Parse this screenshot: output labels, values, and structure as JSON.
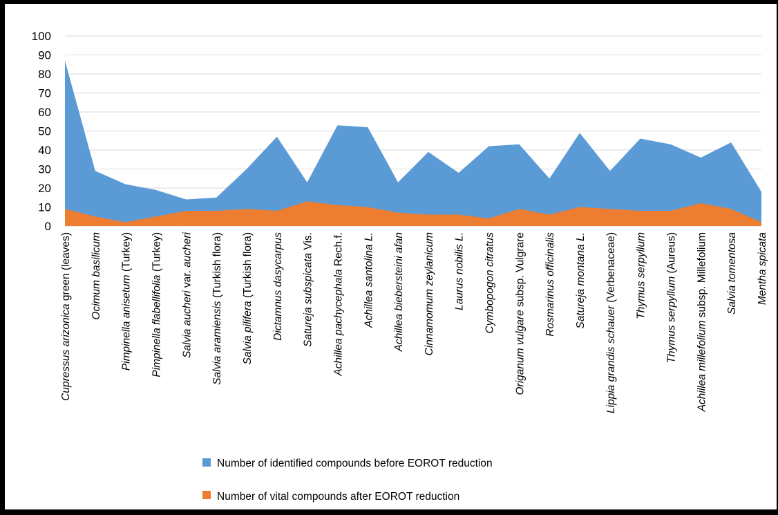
{
  "chart_data": {
    "type": "area",
    "categories": [
      {
        "parts": [
          {
            "t": "Cupressus arizonica",
            "i": true
          },
          {
            "t": " green (leaves)",
            "i": false
          }
        ]
      },
      {
        "parts": [
          {
            "t": "Ocimum basilicum",
            "i": true
          }
        ]
      },
      {
        "parts": [
          {
            "t": "Pimpinella anisetum",
            "i": true
          },
          {
            "t": " (Turkey)",
            "i": false
          }
        ]
      },
      {
        "parts": [
          {
            "t": "Pimpinella flabellifolia",
            "i": true
          },
          {
            "t": " (Turkey)",
            "i": false
          }
        ]
      },
      {
        "parts": [
          {
            "t": "Salvia aucheri",
            "i": true
          },
          {
            "t": " var. ",
            "i": false
          },
          {
            "t": "aucheri",
            "i": true
          }
        ]
      },
      {
        "parts": [
          {
            "t": "Salvia aramiensis",
            "i": true
          },
          {
            "t": " (Turkish flora)",
            "i": false
          }
        ]
      },
      {
        "parts": [
          {
            "t": "Salvia pilifera",
            "i": true
          },
          {
            "t": " (Turkish flora)",
            "i": false
          }
        ]
      },
      {
        "parts": [
          {
            "t": "Dictamnus dasycarpus",
            "i": true
          }
        ]
      },
      {
        "parts": [
          {
            "t": "Satureja subspicata",
            "i": true
          },
          {
            "t": " Vis.",
            "i": false
          }
        ]
      },
      {
        "parts": [
          {
            "t": "Achillea pachycephala",
            "i": true
          },
          {
            "t": " Rech.f.",
            "i": false
          }
        ]
      },
      {
        "parts": [
          {
            "t": "Achillea santolina L.",
            "i": true
          }
        ]
      },
      {
        "parts": [
          {
            "t": "Achillea biebersteini afan",
            "i": true
          }
        ]
      },
      {
        "parts": [
          {
            "t": "Cinnamomum zeylanicum",
            "i": true
          }
        ]
      },
      {
        "parts": [
          {
            "t": "Laurus nobilis L.",
            "i": true
          }
        ]
      },
      {
        "parts": [
          {
            "t": "Cymbopogon citratus",
            "i": true
          }
        ]
      },
      {
        "parts": [
          {
            "t": "Origanum vulgare",
            "i": true
          },
          {
            "t": " subsp. Vulgrare",
            "i": false
          }
        ]
      },
      {
        "parts": [
          {
            "t": "Rosmarinus officinalis",
            "i": true
          }
        ]
      },
      {
        "parts": [
          {
            "t": "Satureja montana L.",
            "i": true
          }
        ]
      },
      {
        "parts": [
          {
            "t": "Lippia grandis schauer",
            "i": true
          },
          {
            "t": " (Verbenaceae)",
            "i": false
          }
        ]
      },
      {
        "parts": [
          {
            "t": "Thymus serpyllum",
            "i": true
          }
        ]
      },
      {
        "parts": [
          {
            "t": "Thymus serpyllum",
            "i": true
          },
          {
            "t": " (Aureus)",
            "i": false
          }
        ]
      },
      {
        "parts": [
          {
            "t": "Achillea millefolium",
            "i": true
          },
          {
            "t": " subsp. Millefolium",
            "i": false
          }
        ]
      },
      {
        "parts": [
          {
            "t": "Salvia tomentosa",
            "i": true
          }
        ]
      },
      {
        "parts": [
          {
            "t": "Mentha spicata",
            "i": true
          }
        ]
      }
    ],
    "series": [
      {
        "name": "Number of identified compounds before EOROT reduction",
        "color": "#5b9bd5",
        "values": [
          87,
          29,
          22,
          19,
          14,
          15,
          30,
          47,
          23,
          53,
          52,
          23,
          39,
          28,
          42,
          43,
          25,
          49,
          29,
          46,
          43,
          36,
          44,
          18
        ]
      },
      {
        "name": "Number of vital compounds after EOROT reduction",
        "color": "#ed7d31",
        "values": [
          9,
          5,
          2,
          5,
          8,
          8,
          9,
          8,
          13,
          11,
          10,
          7,
          6,
          6,
          4,
          9,
          6,
          10,
          9,
          8,
          8,
          12,
          9,
          2
        ]
      }
    ],
    "yticks": [
      "0",
      "10",
      "20",
      "30",
      "40",
      "50",
      "60",
      "70",
      "80",
      "90",
      "100"
    ],
    "ylim": [
      0,
      100
    ],
    "grid": true,
    "legend_position": "bottom"
  }
}
